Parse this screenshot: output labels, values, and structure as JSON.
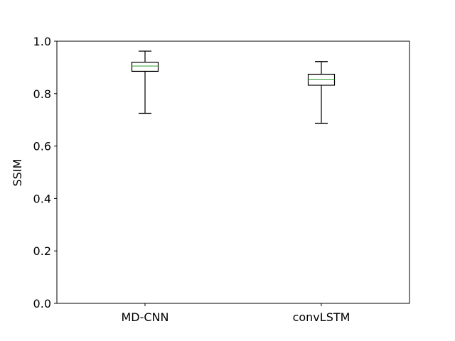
{
  "chart_data": {
    "type": "box",
    "title": "",
    "xlabel": "",
    "ylabel": "SSIM",
    "ylim": [
      0.0,
      1.0
    ],
    "yticks": [
      "0.0",
      "0.2",
      "0.4",
      "0.6",
      "0.8",
      "1.0"
    ],
    "grid": false,
    "categories": [
      "MD-CNN",
      "convLSTM"
    ],
    "boxes": [
      {
        "whisker_low": 0.725,
        "q1": 0.885,
        "median": 0.905,
        "q3": 0.92,
        "whisker_high": 0.962
      },
      {
        "whisker_low": 0.687,
        "q1": 0.832,
        "median": 0.855,
        "q3": 0.874,
        "whisker_high": 0.922
      }
    ],
    "colors": {
      "box": "#000000",
      "median": "#2ca02c"
    }
  }
}
